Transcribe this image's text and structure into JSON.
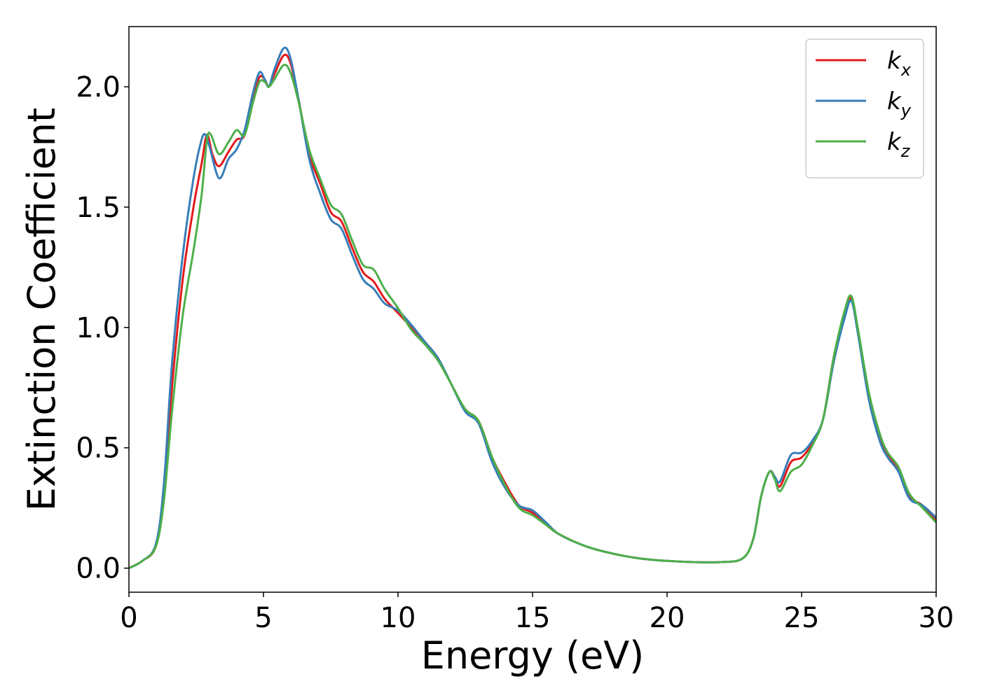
{
  "chart_data": {
    "type": "line",
    "title": "",
    "xlabel": "Energy (eV)",
    "ylabel": "Extinction Coefficient",
    "xlim": [
      0,
      30
    ],
    "ylim": [
      -0.1,
      2.25
    ],
    "xticks": [
      0,
      5,
      10,
      15,
      20,
      25,
      30
    ],
    "xtick_labels": [
      "0",
      "5",
      "10",
      "15",
      "20",
      "25",
      "30"
    ],
    "yticks": [
      0.0,
      0.5,
      1.0,
      1.5,
      2.0
    ],
    "ytick_labels": [
      "0.0",
      "0.5",
      "1.0",
      "1.5",
      "2.0"
    ],
    "grid": false,
    "legend_position": "top-right",
    "series": [
      {
        "name": "k_x",
        "label_main": "k",
        "label_sub": "x",
        "color": "#e41a1c",
        "x": [
          0,
          0.5,
          1.0,
          1.3,
          1.6,
          2.0,
          2.4,
          2.7,
          2.9,
          3.1,
          3.35,
          3.7,
          4.0,
          4.3,
          4.6,
          4.85,
          5.05,
          5.2,
          5.4,
          5.75,
          6.0,
          6.3,
          6.7,
          7.1,
          7.5,
          7.9,
          8.3,
          8.7,
          9.1,
          9.5,
          10.0,
          10.5,
          11.0,
          11.5,
          12.0,
          12.5,
          13.0,
          13.5,
          14.0,
          14.5,
          15.0,
          15.5,
          16.0,
          17.0,
          18.0,
          19.0,
          20.0,
          21.0,
          22.0,
          22.8,
          23.2,
          23.5,
          23.8,
          24.0,
          24.2,
          24.6,
          25.0,
          25.4,
          25.8,
          26.2,
          26.6,
          26.85,
          27.1,
          27.5,
          27.9,
          28.2,
          28.6,
          29.0,
          29.5,
          30.0
        ],
        "y": [
          0.0,
          0.03,
          0.09,
          0.3,
          0.75,
          1.2,
          1.5,
          1.68,
          1.8,
          1.72,
          1.67,
          1.73,
          1.78,
          1.8,
          1.95,
          2.04,
          2.03,
          2.0,
          2.05,
          2.13,
          2.1,
          1.95,
          1.72,
          1.6,
          1.48,
          1.44,
          1.33,
          1.23,
          1.19,
          1.12,
          1.06,
          1.0,
          0.94,
          0.87,
          0.76,
          0.66,
          0.61,
          0.46,
          0.35,
          0.26,
          0.23,
          0.18,
          0.14,
          0.09,
          0.06,
          0.04,
          0.03,
          0.025,
          0.025,
          0.04,
          0.12,
          0.3,
          0.4,
          0.38,
          0.34,
          0.44,
          0.46,
          0.52,
          0.62,
          0.88,
          1.06,
          1.12,
          0.98,
          0.72,
          0.54,
          0.47,
          0.41,
          0.3,
          0.26,
          0.2
        ]
      },
      {
        "name": "k_y",
        "label_main": "k",
        "label_sub": "y",
        "color": "#377eb8",
        "x": [
          0,
          0.5,
          1.0,
          1.3,
          1.6,
          2.0,
          2.4,
          2.7,
          2.85,
          3.0,
          3.35,
          3.7,
          4.0,
          4.3,
          4.6,
          4.85,
          5.05,
          5.2,
          5.4,
          5.75,
          6.0,
          6.3,
          6.7,
          7.1,
          7.5,
          7.9,
          8.3,
          8.7,
          9.1,
          9.5,
          10.0,
          10.5,
          11.0,
          11.5,
          12.0,
          12.5,
          13.0,
          13.5,
          14.0,
          14.5,
          15.0,
          15.5,
          16.0,
          17.0,
          18.0,
          19.0,
          20.0,
          21.0,
          22.0,
          22.8,
          23.2,
          23.5,
          23.8,
          24.0,
          24.2,
          24.6,
          25.0,
          25.4,
          25.8,
          26.2,
          26.6,
          26.85,
          27.1,
          27.5,
          27.9,
          28.2,
          28.6,
          29.0,
          29.5,
          30.0
        ],
        "y": [
          0.0,
          0.03,
          0.1,
          0.35,
          0.85,
          1.3,
          1.62,
          1.78,
          1.8,
          1.75,
          1.62,
          1.7,
          1.74,
          1.82,
          1.97,
          2.06,
          2.03,
          2.0,
          2.07,
          2.16,
          2.12,
          1.95,
          1.7,
          1.56,
          1.45,
          1.41,
          1.3,
          1.2,
          1.16,
          1.1,
          1.07,
          1.01,
          0.94,
          0.87,
          0.76,
          0.65,
          0.6,
          0.44,
          0.33,
          0.26,
          0.24,
          0.19,
          0.14,
          0.09,
          0.06,
          0.04,
          0.03,
          0.025,
          0.025,
          0.04,
          0.12,
          0.3,
          0.4,
          0.38,
          0.36,
          0.47,
          0.48,
          0.53,
          0.62,
          0.86,
          1.04,
          1.11,
          0.97,
          0.7,
          0.53,
          0.46,
          0.4,
          0.29,
          0.26,
          0.21
        ]
      },
      {
        "name": "k_z",
        "label_main": "k",
        "label_sub": "z",
        "color": "#4daf4a",
        "x": [
          0,
          0.5,
          1.0,
          1.3,
          1.6,
          2.0,
          2.4,
          2.7,
          2.9,
          3.05,
          3.35,
          3.7,
          4.0,
          4.3,
          4.6,
          4.85,
          5.05,
          5.2,
          5.4,
          5.75,
          6.0,
          6.3,
          6.7,
          7.1,
          7.5,
          7.9,
          8.3,
          8.7,
          9.1,
          9.5,
          10.0,
          10.5,
          11.0,
          11.5,
          12.0,
          12.5,
          13.0,
          13.5,
          14.0,
          14.5,
          15.0,
          15.5,
          16.0,
          17.0,
          18.0,
          19.0,
          20.0,
          21.0,
          22.0,
          22.8,
          23.2,
          23.5,
          23.8,
          24.0,
          24.2,
          24.6,
          25.0,
          25.4,
          25.8,
          26.2,
          26.6,
          26.85,
          27.1,
          27.5,
          27.9,
          28.2,
          28.6,
          29.0,
          29.5,
          30.0
        ],
        "y": [
          0.0,
          0.03,
          0.09,
          0.28,
          0.65,
          1.05,
          1.32,
          1.55,
          1.78,
          1.8,
          1.72,
          1.77,
          1.82,
          1.8,
          1.93,
          2.02,
          2.02,
          2.0,
          2.03,
          2.09,
          2.06,
          1.94,
          1.74,
          1.62,
          1.51,
          1.47,
          1.36,
          1.26,
          1.24,
          1.16,
          1.08,
          0.99,
          0.93,
          0.86,
          0.76,
          0.66,
          0.61,
          0.46,
          0.34,
          0.25,
          0.22,
          0.18,
          0.14,
          0.09,
          0.06,
          0.04,
          0.03,
          0.025,
          0.025,
          0.04,
          0.12,
          0.3,
          0.4,
          0.37,
          0.32,
          0.4,
          0.43,
          0.51,
          0.62,
          0.88,
          1.07,
          1.13,
          0.99,
          0.73,
          0.56,
          0.48,
          0.42,
          0.31,
          0.25,
          0.19
        ]
      }
    ]
  }
}
